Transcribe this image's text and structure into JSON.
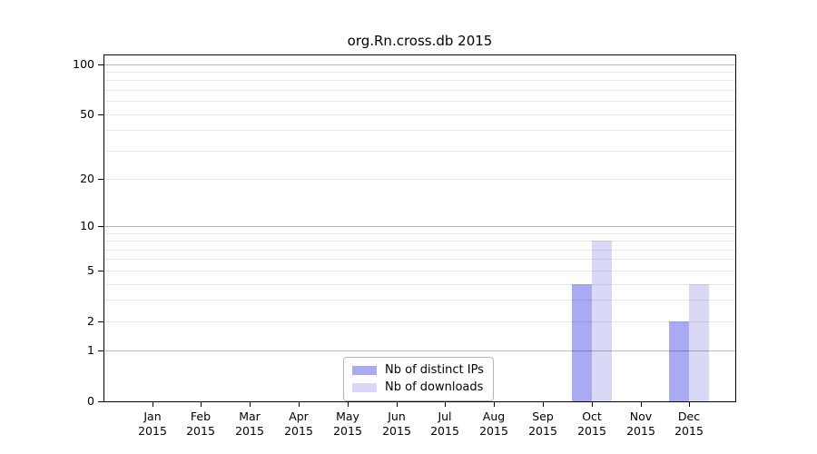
{
  "chart_data": {
    "type": "bar",
    "title": "org.Rn.cross.db 2015",
    "categories": [
      "Jan 2015",
      "Feb 2015",
      "Mar 2015",
      "Apr 2015",
      "May 2015",
      "Jun 2015",
      "Jul 2015",
      "Aug 2015",
      "Sep 2015",
      "Oct 2015",
      "Nov 2015",
      "Dec 2015"
    ],
    "series": [
      {
        "name": "Nb of distinct IPs",
        "color": "#aaaaf3",
        "values": [
          0,
          0,
          0,
          0,
          0,
          0,
          0,
          0,
          0,
          4,
          0,
          2
        ]
      },
      {
        "name": "Nb of downloads",
        "color": "#d9d9f7",
        "values": [
          0,
          0,
          0,
          0,
          0,
          0,
          0,
          0,
          0,
          8,
          0,
          4
        ]
      }
    ],
    "yscale": "log1p",
    "yticks": [
      0,
      1,
      2,
      5,
      10,
      20,
      50,
      100
    ],
    "major_decades": [
      1,
      10,
      100
    ],
    "minor_gridlines": [
      3,
      4,
      6,
      7,
      8,
      9,
      30,
      40,
      60,
      70,
      80,
      90
    ],
    "ylim": [
      0,
      113
    ],
    "xlabel": "",
    "ylabel": "",
    "grid": "on",
    "legend_position": "lower center"
  }
}
